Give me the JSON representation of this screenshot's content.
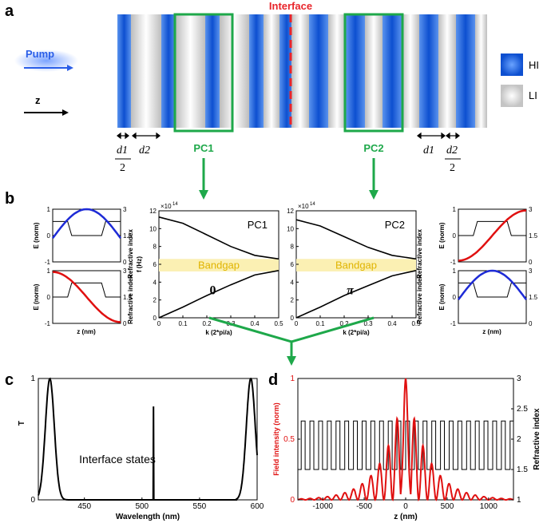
{
  "figure": {
    "panel_labels": [
      "a",
      "b",
      "c",
      "d"
    ],
    "panel_a": {
      "interface_label": "Interface",
      "pump_label": "Pump",
      "z_label": "z",
      "legend": [
        {
          "label": "HI",
          "color": "#1a5fd6"
        },
        {
          "label": "LI",
          "color": "#d8d8d8"
        }
      ],
      "dims": {
        "d1": "d1",
        "d2": "d2",
        "over": "2"
      },
      "pc1_label": "PC1",
      "pc2_label": "PC2",
      "accent_green": "#1ea84a",
      "interface_color": "#e8242a"
    },
    "panel_b": {
      "left_top_ylabel": "E (norm)",
      "left_bottom_ylabel": "E (norm)",
      "right_ylabel": "Refractive index",
      "small_xlabel": "z (nm)",
      "band_ylabel": "f (Hz)",
      "band_xlabel": "k (2*pi/a)",
      "exp_label": "×10",
      "exp_power": "14",
      "pc1_title": "PC1",
      "pc2_title": "PC2",
      "bandgap_label": "Bandgap",
      "phase_pc1": "0",
      "phase_pc2": "π",
      "e_yticks": [
        "1",
        "0",
        "-1"
      ],
      "n_yticks": [
        "3",
        "1.5",
        "0"
      ],
      "f_yticks": [
        "12",
        "10",
        "8",
        "6",
        "4",
        "2",
        "0"
      ],
      "k_xticks": [
        "0",
        "0.1",
        "0.2",
        "0.3",
        "0.4",
        "0.5"
      ]
    },
    "panel_c": {
      "ylabel": "T",
      "xlabel": "Wavelength (nm)",
      "annotation": "Interface states",
      "xticks": [
        "450",
        "500",
        "550",
        "600"
      ],
      "yticks": [
        "1",
        "0"
      ]
    },
    "panel_d": {
      "left_ylabel": "Field intensity (norm)",
      "right_ylabel": "Refractive index",
      "xlabel": "z (nm)",
      "xticks": [
        "-1000",
        "-500",
        "0",
        "500",
        "1000"
      ],
      "left_yticks": [
        "1",
        "0.5",
        "0"
      ],
      "right_yticks": [
        "3",
        "2.5",
        "2",
        "1.5",
        "1"
      ]
    }
  },
  "chart_data": [
    {
      "type": "line",
      "name": "PC1 band structure",
      "xlabel": "k (2*pi/a)",
      "ylabel": "f (Hz)",
      "xlim": [
        0,
        0.5
      ],
      "ylim": [
        0,
        12
      ],
      "y_multiplier": "1e14",
      "series": [
        {
          "x": [
            0,
            0.1,
            0.2,
            0.3,
            0.4,
            0.5
          ],
          "values": [
            11.3,
            10.6,
            9.3,
            8.0,
            7.0,
            6.6
          ]
        },
        {
          "x": [
            0,
            0.1,
            0.2,
            0.3,
            0.4,
            0.5
          ],
          "values": [
            0,
            1.2,
            2.5,
            3.7,
            4.8,
            5.3
          ]
        }
      ],
      "bandgap": [
        5.2,
        6.6
      ]
    },
    {
      "type": "line",
      "name": "PC2 band structure",
      "xlabel": "k (2*pi/a)",
      "ylabel": "f (Hz)",
      "xlim": [
        0,
        0.5
      ],
      "ylim": [
        0,
        12
      ],
      "y_multiplier": "1e14",
      "series": [
        {
          "x": [
            0,
            0.1,
            0.2,
            0.3,
            0.4,
            0.5
          ],
          "values": [
            11.0,
            10.3,
            9.1,
            7.9,
            7.0,
            6.6
          ]
        },
        {
          "x": [
            0,
            0.1,
            0.2,
            0.3,
            0.4,
            0.5
          ],
          "values": [
            0,
            1.2,
            2.5,
            3.6,
            4.7,
            5.3
          ]
        }
      ],
      "bandgap": [
        5.2,
        6.6
      ]
    },
    {
      "type": "line",
      "name": "Transmission",
      "xlabel": "Wavelength (nm)",
      "ylabel": "T",
      "xlim": [
        410,
        600
      ],
      "ylim": [
        0,
        1
      ],
      "series": [
        {
          "x": [
            410,
            415,
            420,
            425,
            430,
            435,
            440,
            510,
            510.5,
            511,
            585,
            590,
            595,
            600
          ],
          "values": [
            0.05,
            0.45,
            1.0,
            0.55,
            0.1,
            0.0,
            0.0,
            0.0,
            0.77,
            0.0,
            0.0,
            0.55,
            1.0,
            0.55
          ]
        }
      ]
    },
    {
      "type": "line",
      "name": "Interface mode field",
      "xlabel": "z (nm)",
      "ylabel": "Field intensity (norm)",
      "xlim": [
        -1300,
        1300
      ],
      "ylim": [
        0,
        1
      ],
      "series": [
        {
          "x": [
            -900,
            -600,
            -400,
            -250,
            -150,
            -50,
            0,
            50,
            120,
            250,
            400,
            600,
            900
          ],
          "values": [
            0.01,
            0.05,
            0.15,
            0.3,
            0.45,
            0.55,
            1.0,
            0.6,
            0.45,
            0.25,
            0.1,
            0.03,
            0.0
          ]
        }
      ],
      "right_axis": {
        "label": "Refractive index",
        "ylim": [
          1,
          3
        ],
        "high": 2.3,
        "low": 1.5
      }
    }
  ]
}
